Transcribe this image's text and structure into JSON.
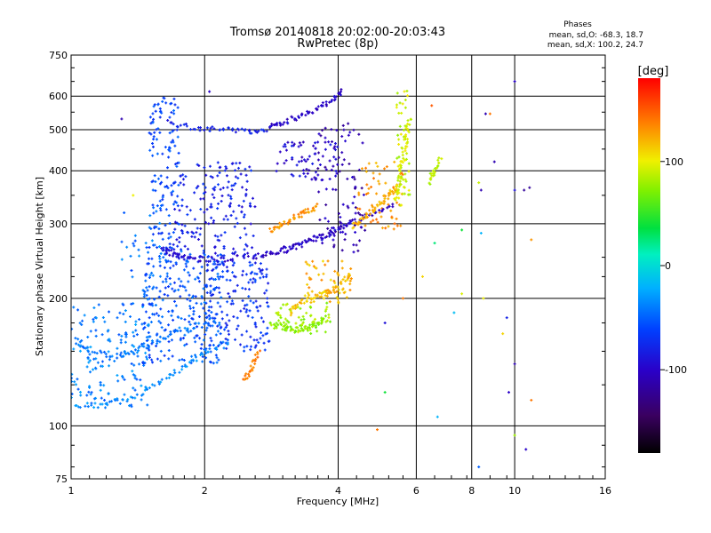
{
  "chart_data": {
    "type": "scatter",
    "title": "Tromsø 20140818 20:02:00-20:03:43",
    "subtitle": "RwPretec (8p)",
    "xlabel": "Frequency [MHz]",
    "ylabel": "Stationary phase Virtual Height [km]",
    "x_scale": "log",
    "y_scale": "log",
    "xlim": [
      1,
      16
    ],
    "ylim": [
      75,
      750
    ],
    "x_ticks": [
      1,
      2,
      4,
      6,
      8,
      10,
      16
    ],
    "x_tick_labels": [
      "1",
      "2",
      "4",
      "6",
      "8",
      "10",
      "16"
    ],
    "y_ticks": [
      75,
      100,
      200,
      300,
      400,
      500,
      600,
      750
    ],
    "y_tick_labels": [
      "75",
      "100",
      "200",
      "300",
      "400",
      "500",
      "600",
      "750"
    ],
    "grid": true,
    "phases": {
      "title": "Phases",
      "line1": "mean, sd,O: -68.3, 18.7",
      "line2": "mean, sd,X: 100.2, 24.7"
    },
    "colorbar": {
      "label": "[deg]",
      "range": [
        -180,
        180
      ],
      "ticks": [
        100,
        0,
        -100
      ],
      "tick_labels": [
        "100",
        "0",
        "-100"
      ],
      "placement": "right"
    },
    "traces": [
      {
        "x": [
          1.03,
          1.2,
          1.4,
          1.6,
          1.8,
          2.0,
          2.3
        ],
        "y": [
          112,
          112,
          118,
          128,
          138,
          148,
          158
        ],
        "phase": -35
      },
      {
        "x": [
          1.02,
          1.1,
          1.25,
          1.4,
          1.55,
          1.7,
          1.9,
          2.2
        ],
        "y": [
          160,
          150,
          146,
          150,
          158,
          166,
          172,
          176
        ],
        "phase": -42
      },
      {
        "x": [
          1.6,
          1.7,
          1.8,
          2.0,
          2.3,
          2.7,
          3.2,
          3.8,
          4.3
        ],
        "y": [
          262,
          255,
          250,
          247,
          248,
          255,
          265,
          282,
          300
        ],
        "phase": -95
      },
      {
        "x": [
          2.6,
          3.0,
          3.3,
          3.7,
          4.2,
          4.8,
          5.4
        ],
        "y": [
          250,
          258,
          268,
          282,
          300,
          318,
          335
        ],
        "phase": -105
      },
      {
        "x": [
          2.8,
          3.0,
          3.3,
          3.6,
          3.9,
          4.1
        ],
        "y": [
          505,
          520,
          540,
          560,
          590,
          620
        ],
        "phase": -100
      },
      {
        "x": [
          1.65,
          1.9,
          2.2,
          2.5,
          2.8
        ],
        "y": [
          520,
          505,
          500,
          495,
          500
        ],
        "phase": -80
      },
      {
        "x": [
          2.8,
          3.0,
          3.2,
          3.4,
          3.6,
          3.8
        ],
        "y": [
          175,
          170,
          168,
          170,
          175,
          180
        ],
        "phase": 75
      },
      {
        "x": [
          3.1,
          3.3,
          3.6,
          3.9,
          4.3
        ],
        "y": [
          185,
          195,
          200,
          210,
          230
        ],
        "phase": 118
      },
      {
        "x": [
          2.8,
          3.0,
          3.2,
          3.4,
          3.6
        ],
        "y": [
          290,
          300,
          310,
          320,
          330
        ],
        "phase": 130
      },
      {
        "x": [
          4.3,
          4.6,
          4.9,
          5.2,
          5.5
        ],
        "y": [
          295,
          310,
          330,
          350,
          370
        ],
        "phase": 120
      },
      {
        "x": [
          5.4,
          5.5,
          5.6,
          5.7,
          5.8
        ],
        "y": [
          340,
          380,
          430,
          480,
          540
        ],
        "phase": 95
      },
      {
        "x": [
          2.45,
          2.55,
          2.65
        ],
        "y": [
          128,
          138,
          150
        ],
        "phase": 140
      },
      {
        "x": [
          6.4,
          6.6,
          6.8
        ],
        "y": [
          375,
          400,
          430
        ],
        "phase": 85
      }
    ],
    "clusters": [
      {
        "x_range": [
          1.0,
          1.5
        ],
        "y_range": [
          110,
          195
        ],
        "phase": -40,
        "n": 160
      },
      {
        "x_range": [
          1.45,
          2.2
        ],
        "y_range": [
          140,
          260
        ],
        "phase": -55,
        "n": 260
      },
      {
        "x_range": [
          1.5,
          1.75
        ],
        "y_range": [
          260,
          600
        ],
        "phase": -60,
        "n": 130
      },
      {
        "x_range": [
          1.7,
          2.6
        ],
        "y_range": [
          250,
          420
        ],
        "phase": -80,
        "n": 180
      },
      {
        "x_range": [
          2.0,
          2.8
        ],
        "y_range": [
          150,
          245
        ],
        "phase": -70,
        "n": 160
      },
      {
        "x_range": [
          2.9,
          4.0
        ],
        "y_range": [
          380,
          470
        ],
        "phase": -95,
        "n": 70
      },
      {
        "x_range": [
          3.6,
          4.6
        ],
        "y_range": [
          250,
          520
        ],
        "phase": -110,
        "n": 90
      },
      {
        "x_range": [
          2.9,
          3.9
        ],
        "y_range": [
          165,
          195
        ],
        "phase": 78,
        "n": 60
      },
      {
        "x_range": [
          3.3,
          4.3
        ],
        "y_range": [
          195,
          245
        ],
        "phase": 120,
        "n": 70
      },
      {
        "x_range": [
          4.4,
          5.6
        ],
        "y_range": [
          290,
          420
        ],
        "phase": 130,
        "n": 60
      },
      {
        "x_range": [
          5.4,
          5.8
        ],
        "y_range": [
          330,
          620
        ],
        "phase": 92,
        "n": 60
      },
      {
        "x_range": [
          1.3,
          1.6
        ],
        "y_range": [
          190,
          330
        ],
        "phase": -45,
        "n": 40
      }
    ],
    "scattered": [
      {
        "x": 1.3,
        "y": 530,
        "phase": -110
      },
      {
        "x": 1.38,
        "y": 350,
        "phase": 100
      },
      {
        "x": 2.05,
        "y": 615,
        "phase": -100
      },
      {
        "x": 4.2,
        "y": 330,
        "phase": -110
      },
      {
        "x": 4.8,
        "y": 395,
        "phase": 125
      },
      {
        "x": 5.1,
        "y": 120,
        "phase": 40
      },
      {
        "x": 5.1,
        "y": 175,
        "phase": -90
      },
      {
        "x": 5.6,
        "y": 200,
        "phase": 140
      },
      {
        "x": 6.2,
        "y": 225,
        "phase": 110
      },
      {
        "x": 6.5,
        "y": 570,
        "phase": 150
      },
      {
        "x": 6.6,
        "y": 270,
        "phase": 25
      },
      {
        "x": 6.7,
        "y": 105,
        "phase": -20
      },
      {
        "x": 7.3,
        "y": 185,
        "phase": -15
      },
      {
        "x": 7.6,
        "y": 290,
        "phase": 40
      },
      {
        "x": 7.6,
        "y": 205,
        "phase": 95
      },
      {
        "x": 8.3,
        "y": 375,
        "phase": 90
      },
      {
        "x": 8.4,
        "y": 360,
        "phase": -110
      },
      {
        "x": 8.5,
        "y": 200,
        "phase": 100
      },
      {
        "x": 8.6,
        "y": 545,
        "phase": -110
      },
      {
        "x": 8.8,
        "y": 545,
        "phase": 140
      },
      {
        "x": 8.4,
        "y": 285,
        "phase": -20
      },
      {
        "x": 8.3,
        "y": 80,
        "phase": -50
      },
      {
        "x": 9.0,
        "y": 420,
        "phase": -110
      },
      {
        "x": 9.4,
        "y": 165,
        "phase": 110
      },
      {
        "x": 9.6,
        "y": 180,
        "phase": -80
      },
      {
        "x": 9.7,
        "y": 120,
        "phase": -100
      },
      {
        "x": 10.0,
        "y": 140,
        "phase": -110
      },
      {
        "x": 10.0,
        "y": 95,
        "phase": 80
      },
      {
        "x": 10.0,
        "y": 650,
        "phase": -100
      },
      {
        "x": 10.0,
        "y": 360,
        "phase": -90
      },
      {
        "x": 10.5,
        "y": 360,
        "phase": -120
      },
      {
        "x": 10.8,
        "y": 365,
        "phase": -120
      },
      {
        "x": 10.9,
        "y": 115,
        "phase": 140
      },
      {
        "x": 10.6,
        "y": 88,
        "phase": -100
      },
      {
        "x": 10.9,
        "y": 275,
        "phase": 130
      },
      {
        "x": 4.9,
        "y": 98,
        "phase": 140
      }
    ]
  }
}
